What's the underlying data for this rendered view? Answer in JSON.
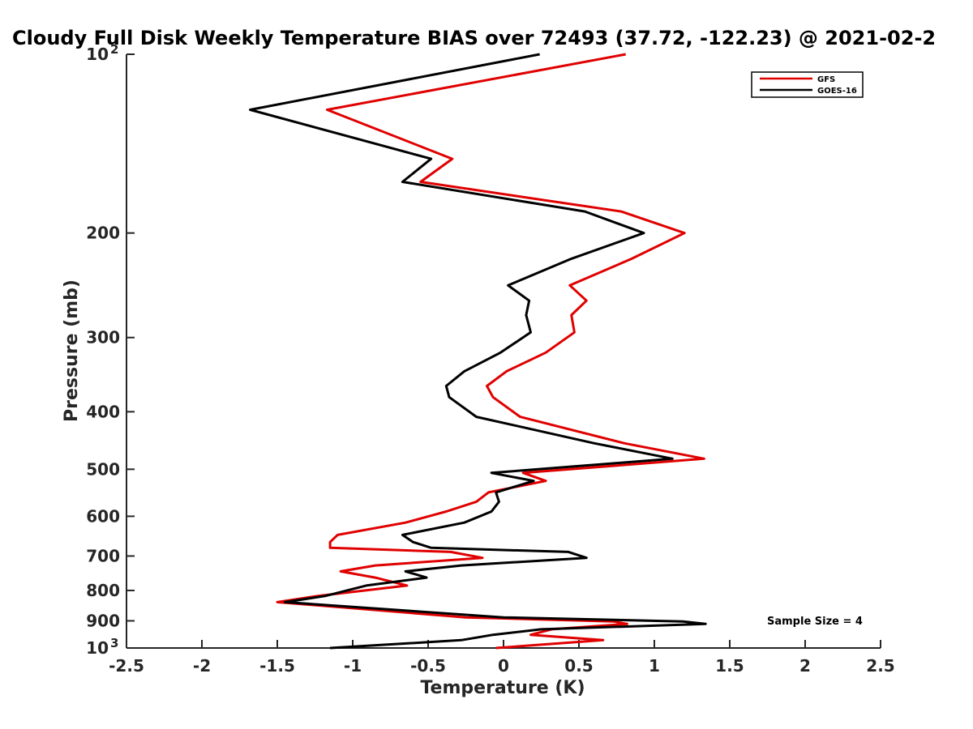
{
  "chart_data": {
    "type": "line",
    "title": "Cloudy Full Disk Weekly Temperature BIAS over 72493 (37.72, -122.23) @ 2021-02-2",
    "xlabel": "Temperature (K)",
    "ylabel": "Pressure (mb)",
    "xlim": [
      -2.5,
      2.5
    ],
    "ylim": [
      100,
      1000
    ],
    "y_scale": "log",
    "y_reversed": true,
    "grid": false,
    "legend_placement": "top-right",
    "x_ticks": [
      {
        "value": -2.5,
        "label": "-2.5"
      },
      {
        "value": -2,
        "label": "-2"
      },
      {
        "value": -1.5,
        "label": "-1.5"
      },
      {
        "value": -1,
        "label": "-1"
      },
      {
        "value": -0.5,
        "label": "-0.5"
      },
      {
        "value": 0,
        "label": "0"
      },
      {
        "value": 0.5,
        "label": "0.5"
      },
      {
        "value": 1,
        "label": "1"
      },
      {
        "value": 1.5,
        "label": "1.5"
      },
      {
        "value": 2,
        "label": "2"
      },
      {
        "value": 2.5,
        "label": "2.5"
      }
    ],
    "y_ticks": [
      {
        "value": 100,
        "label": "10",
        "sup": "2"
      },
      {
        "value": 200,
        "label": "200"
      },
      {
        "value": 300,
        "label": "300"
      },
      {
        "value": 400,
        "label": "400"
      },
      {
        "value": 500,
        "label": "500"
      },
      {
        "value": 600,
        "label": "600"
      },
      {
        "value": 700,
        "label": "700"
      },
      {
        "value": 800,
        "label": "800"
      },
      {
        "value": 900,
        "label": "900"
      },
      {
        "value": 1000,
        "label": "10",
        "sup": "3"
      }
    ],
    "series": [
      {
        "name": "GFS",
        "color": "#e00000",
        "points": [
          [
            0.81,
            100
          ],
          [
            -1.17,
            124
          ],
          [
            -0.34,
            150
          ],
          [
            -0.55,
            164
          ],
          [
            0.78,
            184
          ],
          [
            1.2,
            200
          ],
          [
            0.85,
            221
          ],
          [
            0.44,
            245
          ],
          [
            0.55,
            260
          ],
          [
            0.45,
            275
          ],
          [
            0.47,
            294
          ],
          [
            0.28,
            318
          ],
          [
            0.02,
            342
          ],
          [
            -0.11,
            362
          ],
          [
            -0.07,
            378
          ],
          [
            0.11,
            408
          ],
          [
            0.8,
            452
          ],
          [
            1.33,
            480
          ],
          [
            0.13,
            507
          ],
          [
            0.28,
            523
          ],
          [
            -0.1,
            547
          ],
          [
            -0.18,
            567
          ],
          [
            -0.38,
            589
          ],
          [
            -0.65,
            615
          ],
          [
            -1.1,
            645
          ],
          [
            -1.15,
            663
          ],
          [
            -1.15,
            678
          ],
          [
            -0.35,
            689
          ],
          [
            -0.14,
            705
          ],
          [
            -0.85,
            726
          ],
          [
            -1.08,
            743
          ],
          [
            -0.85,
            761
          ],
          [
            -0.64,
            785
          ],
          [
            -1.23,
            817
          ],
          [
            -1.5,
            837
          ],
          [
            -0.25,
            888
          ],
          [
            0.73,
            902
          ],
          [
            0.82,
            911
          ],
          [
            0.32,
            930
          ],
          [
            0.18,
            950
          ],
          [
            0.66,
            970
          ],
          [
            -0.05,
            1000
          ]
        ]
      },
      {
        "name": "GOES-16",
        "color": "#000000",
        "points": [
          [
            0.24,
            100
          ],
          [
            -1.68,
            124
          ],
          [
            -0.48,
            150
          ],
          [
            -0.67,
            164
          ],
          [
            0.54,
            184
          ],
          [
            0.93,
            200
          ],
          [
            0.45,
            221
          ],
          [
            0.03,
            245
          ],
          [
            0.17,
            260
          ],
          [
            0.15,
            275
          ],
          [
            0.18,
            294
          ],
          [
            -0.02,
            318
          ],
          [
            -0.26,
            342
          ],
          [
            -0.38,
            362
          ],
          [
            -0.36,
            378
          ],
          [
            -0.18,
            408
          ],
          [
            0.6,
            452
          ],
          [
            1.12,
            480
          ],
          [
            -0.08,
            507
          ],
          [
            0.2,
            523
          ],
          [
            -0.05,
            547
          ],
          [
            -0.03,
            567
          ],
          [
            -0.08,
            589
          ],
          [
            -0.26,
            615
          ],
          [
            -0.67,
            645
          ],
          [
            -0.6,
            663
          ],
          [
            -0.48,
            678
          ],
          [
            0.43,
            689
          ],
          [
            0.55,
            705
          ],
          [
            -0.28,
            726
          ],
          [
            -0.65,
            743
          ],
          [
            -0.51,
            761
          ],
          [
            -0.91,
            785
          ],
          [
            -1.18,
            817
          ],
          [
            -1.45,
            837
          ],
          [
            0.0,
            888
          ],
          [
            1.19,
            902
          ],
          [
            1.34,
            911
          ],
          [
            0.25,
            930
          ],
          [
            -0.07,
            950
          ],
          [
            -0.28,
            970
          ],
          [
            -1.15,
            1000
          ]
        ]
      }
    ],
    "legend": [
      {
        "label": "GFS",
        "color": "#e00000"
      },
      {
        "label": "GOES-16",
        "color": "#000000"
      }
    ],
    "annotation": "Sample Size = 4"
  }
}
